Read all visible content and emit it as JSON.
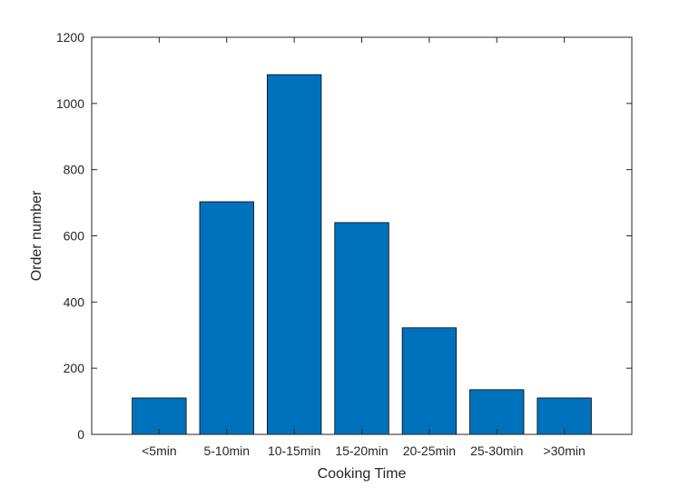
{
  "chart_data": {
    "type": "bar",
    "categories": [
      "<5min",
      "5-10min",
      "10-15min",
      "15-20min",
      "20-25min",
      "25-30min",
      ">30min"
    ],
    "values": [
      110,
      703,
      1087,
      640,
      322,
      135,
      110
    ],
    "title": "",
    "xlabel": "Cooking Time",
    "ylabel": "Order number",
    "ylim": [
      0,
      1200
    ],
    "yticks": [
      0,
      200,
      400,
      600,
      800,
      1000,
      1200
    ],
    "grid": false,
    "bar_color": "#0072BD",
    "bar_edge_color": "#000000",
    "axis_color": "#262626"
  }
}
